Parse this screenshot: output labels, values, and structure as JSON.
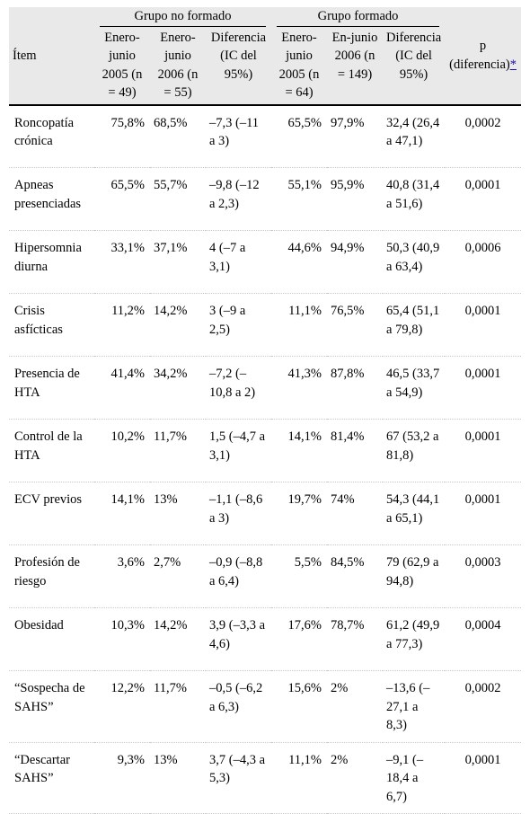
{
  "header": {
    "item": "Ítem",
    "group_untrained": "Grupo no formado",
    "group_trained": "Grupo formado",
    "p_label": "p (diferencia)",
    "p_ref": "*",
    "cols": [
      "Enero-junio 2005 (n = 49)",
      "Enero-junio 2006 (n = 55)",
      "Diferencia (IC del 95%)",
      "Enero-junio 2005 (n = 64)",
      "En-junio 2006 (n = 149)",
      "Diferencia (IC del 95%)"
    ]
  },
  "rows": [
    {
      "item": "Roncopatía crónica",
      "a": "75,8%",
      "b": "68,5%",
      "d1": "–7,3 (–11 a 3)",
      "c": "65,5%",
      "e": "97,9%",
      "d2": "32,4 (26,4 a 47,1)",
      "p": "0,0002"
    },
    {
      "item": "Apneas presenciadas",
      "a": "65,5%",
      "b": "55,7%",
      "d1": "–9,8 (–12 a 2,3)",
      "c": "55,1%",
      "e": "95,9%",
      "d2": "40,8 (31,4 a 51,6)",
      "p": "0,0001"
    },
    {
      "item": "Hipersomnia diurna",
      "a": "33,1%",
      "b": "37,1%",
      "d1": "4 (–7 a 3,1)",
      "c": "44,6%",
      "e": "94,9%",
      "d2": "50,3 (40,9 a 63,4)",
      "p": "0,0006"
    },
    {
      "item": "Crisis asfícticas",
      "a": "11,2%",
      "b": "14,2%",
      "d1": "3 (–9 a 2,5)",
      "c": "11,1%",
      "e": "76,5%",
      "d2": "65,4 (51,1 a 79,8)",
      "p": "0,0001"
    },
    {
      "item": "Presencia de HTA",
      "a": "41,4%",
      "b": "34,2%",
      "d1": "–7,2 (–10,8 a 2)",
      "c": "41,3%",
      "e": "87,8%",
      "d2": "46,5 (33,7 a 54,9)",
      "p": "0,0001"
    },
    {
      "item": "Control de la HTA",
      "a": "10,2%",
      "b": "11,7%",
      "d1": "1,5 (–4,7 a 3,1)",
      "c": "14,1%",
      "e": "81,4%",
      "d2": "67 (53,2 a 81,8)",
      "p": "0,0001"
    },
    {
      "item": "ECV previos",
      "a": "14,1%",
      "b": "13%",
      "d1": "–1,1 (–8,6 a 3)",
      "c": "19,7%",
      "e": "74%",
      "d2": "54,3 (44,1 a 65,1)",
      "p": "0,0001"
    },
    {
      "item": "Profesión de riesgo",
      "a": "3,6%",
      "b": "2,7%",
      "d1": "–0,9 (–8,8 a 6,4)",
      "c": "5,5%",
      "e": "84,5%",
      "d2": "79 (62,9 a 94,8)",
      "p": "0,0003"
    },
    {
      "item": "Obesidad",
      "a": "10,3%",
      "b": "14,2%",
      "d1": "3,9 (–3,3 a 4,6)",
      "c": "17,6%",
      "e": "78,7%",
      "d2": "61,2 (49,9 a 77,3)",
      "p": "0,0004"
    },
    {
      "item": "“Sospecha de SAHS”",
      "a": "12,2%",
      "b": "11,7%",
      "d1": "–0,5 (–6,2 a 6,3)",
      "c": "15,6%",
      "e": "2%",
      "d2": "–13,6 (–27,1 a 8,3)",
      "p": "0,0002"
    },
    {
      "item": "“Descartar SAHS”",
      "a": "9,3%",
      "b": "13%",
      "d1": "3,7 (–4,3 a 5,3)",
      "c": "11,1%",
      "e": "2%",
      "d2": "–9,1 (–18,4 a 6,7)",
      "p": "0,0001"
    }
  ]
}
